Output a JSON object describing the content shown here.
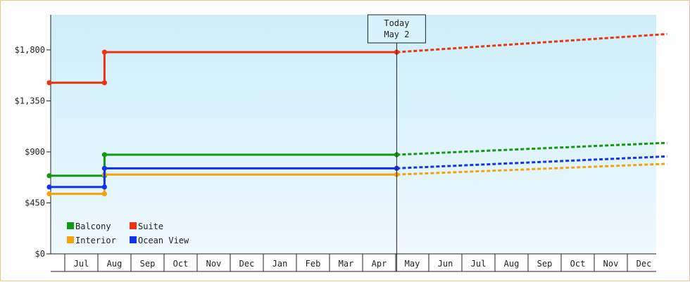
{
  "chart_data": {
    "type": "line",
    "style": "step",
    "x_period_labels": [
      "Jul",
      "Aug",
      "Sep",
      "Oct",
      "Nov",
      "Dec",
      "Jan",
      "Feb",
      "Mar",
      "Apr",
      "May",
      "Jun",
      "Jul",
      "Aug",
      "Sep",
      "Oct",
      "Nov",
      "Dec"
    ],
    "y_ticks": [
      {
        "value": 0,
        "label": "$0"
      },
      {
        "value": 450,
        "label": "$450"
      },
      {
        "value": 900,
        "label": "$900"
      },
      {
        "value": 1350,
        "label": "$1,350"
      },
      {
        "value": 1800,
        "label": "$1,800"
      }
    ],
    "ylim": [
      0,
      2110
    ],
    "xlim": [
      0,
      18.2
    ],
    "today": {
      "line1": "Today",
      "line2": "May 2",
      "x": 10.03
    },
    "legend": {
      "position": "bottom-left"
    },
    "background_gradient": [
      "#cdeef9",
      "#eef9fe"
    ],
    "series": [
      {
        "name": "Balcony",
        "color": "#119911",
        "actual": [
          [
            -0.45,
            690
          ],
          [
            1.2,
            690
          ],
          [
            1.2,
            875
          ],
          [
            10.03,
            875
          ]
        ],
        "forecast": [
          [
            10.03,
            875
          ],
          [
            18.2,
            980
          ]
        ]
      },
      {
        "name": "Suite",
        "color": "#ee3311",
        "actual": [
          [
            -0.45,
            1510
          ],
          [
            1.2,
            1510
          ],
          [
            1.2,
            1780
          ],
          [
            10.03,
            1780
          ]
        ],
        "forecast": [
          [
            10.03,
            1780
          ],
          [
            18.2,
            1940
          ]
        ]
      },
      {
        "name": "Interior",
        "color": "#f5a20a",
        "actual": [
          [
            -0.45,
            530
          ],
          [
            1.2,
            530
          ],
          [
            1.2,
            700
          ],
          [
            10.03,
            700
          ]
        ],
        "forecast": [
          [
            10.03,
            700
          ],
          [
            18.2,
            795
          ]
        ]
      },
      {
        "name": "Ocean View",
        "color": "#1133ee",
        "actual": [
          [
            -0.45,
            590
          ],
          [
            1.2,
            590
          ],
          [
            1.2,
            755
          ],
          [
            10.03,
            755
          ]
        ],
        "forecast": [
          [
            10.03,
            755
          ],
          [
            18.2,
            860
          ]
        ]
      }
    ]
  }
}
